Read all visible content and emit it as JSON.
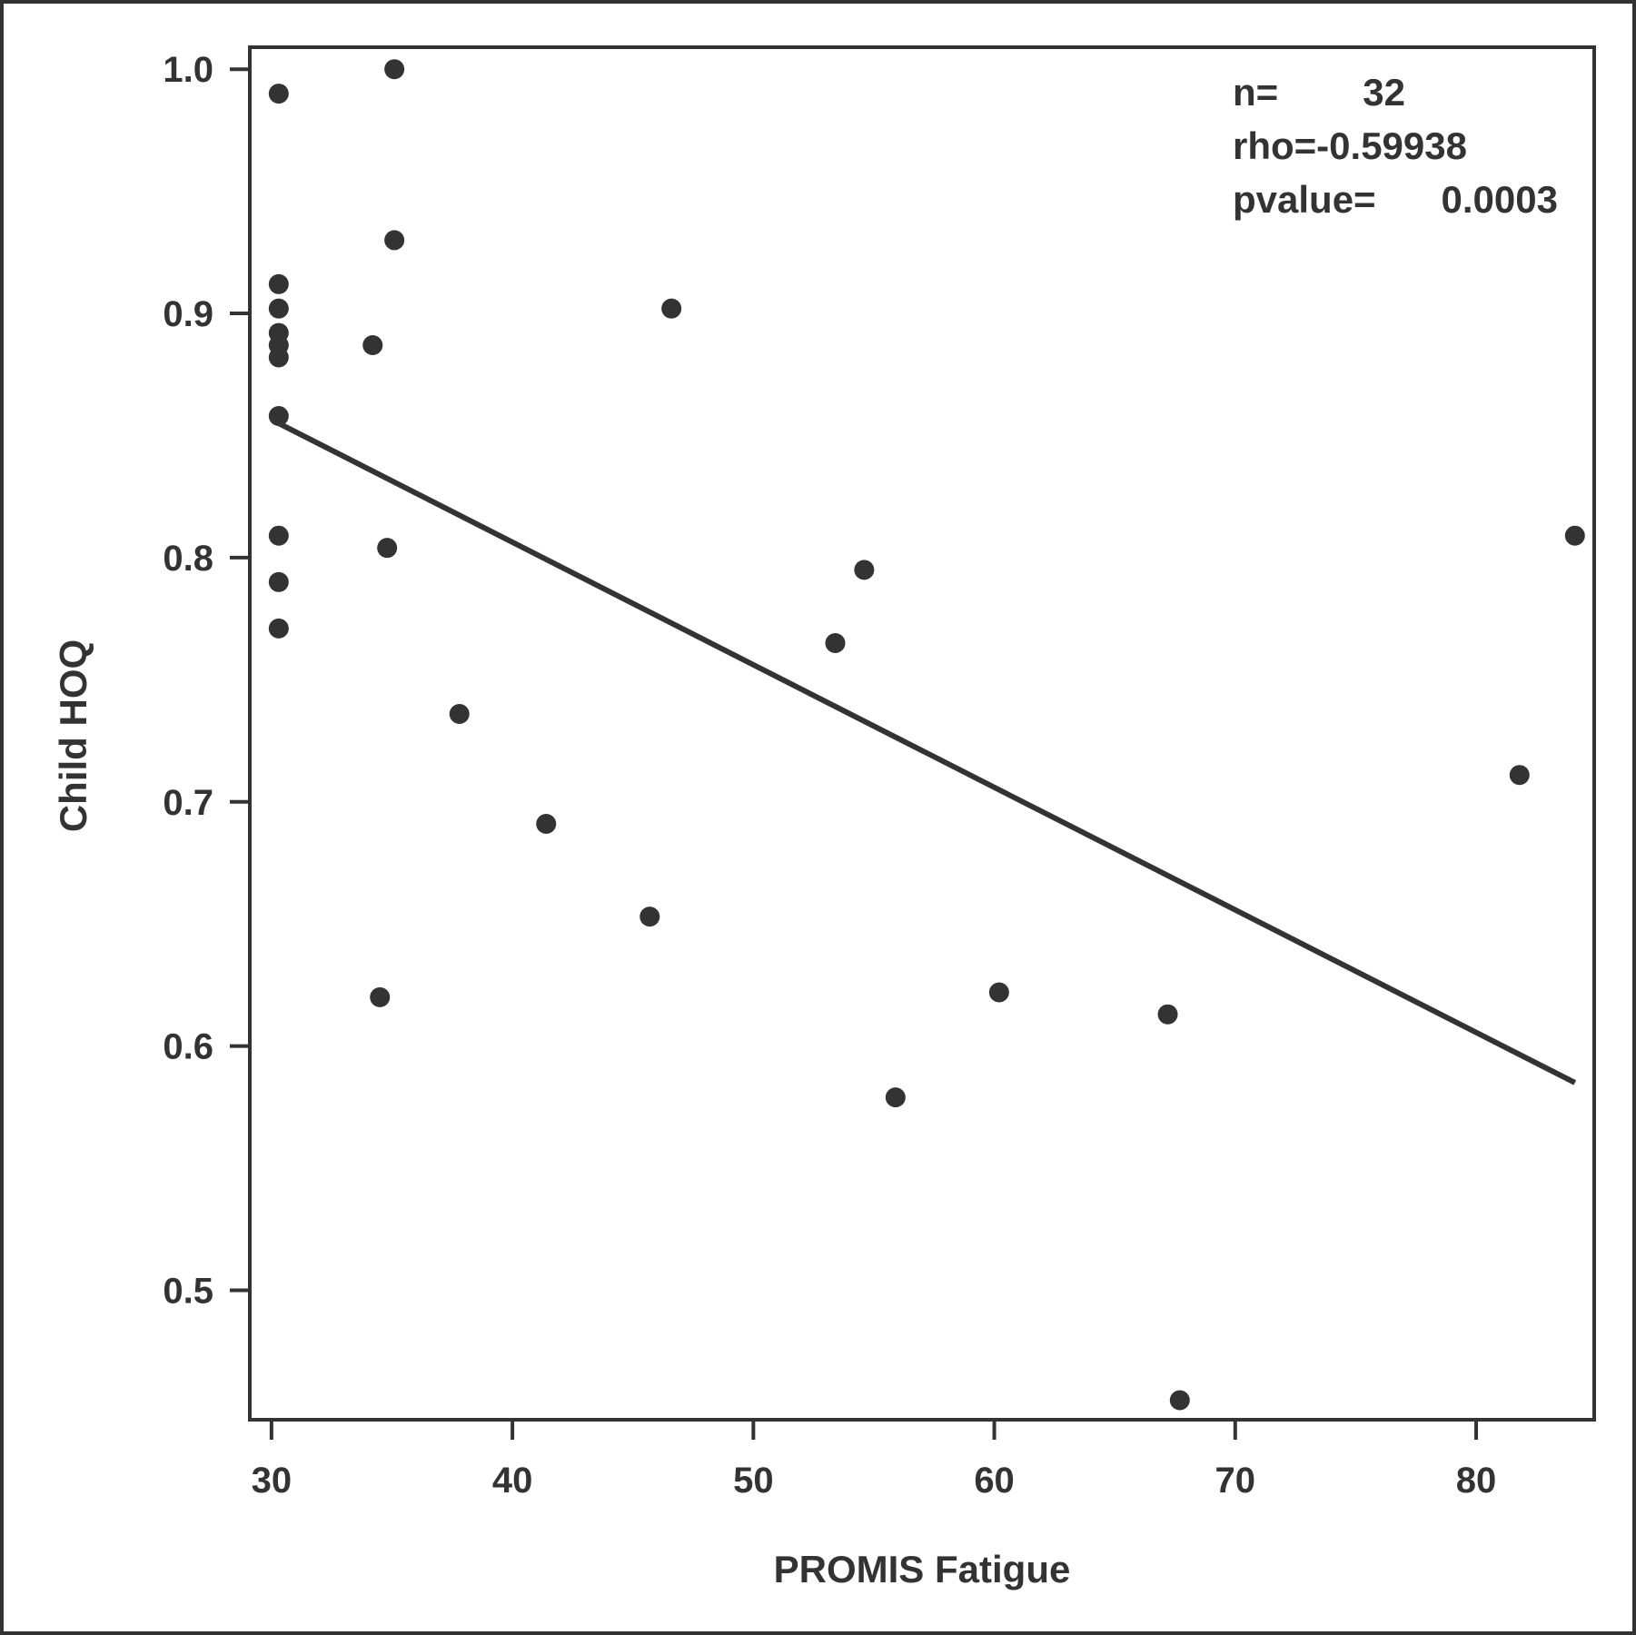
{
  "chart_data": {
    "type": "scatter",
    "xlabel": "PROMIS Fatigue",
    "ylabel": "Child HOQ",
    "xlim": [
      29.1,
      84.9
    ],
    "ylim": [
      0.447,
      1.009
    ],
    "x_ticks": [
      30,
      40,
      50,
      60,
      70,
      80
    ],
    "x_tick_labels": [
      "30",
      "40",
      "50",
      "60",
      "70",
      "80"
    ],
    "y_ticks": [
      0.5,
      0.6,
      0.7,
      0.8,
      0.9,
      1.0
    ],
    "y_tick_labels": [
      "0.5",
      "0.6",
      "0.7",
      "0.8",
      "0.9",
      "1.0"
    ],
    "grid": false,
    "points": [
      {
        "x": 30.3,
        "y": 0.99
      },
      {
        "x": 30.3,
        "y": 0.912
      },
      {
        "x": 30.3,
        "y": 0.902
      },
      {
        "x": 30.3,
        "y": 0.892
      },
      {
        "x": 30.3,
        "y": 0.887
      },
      {
        "x": 30.3,
        "y": 0.882
      },
      {
        "x": 30.3,
        "y": 0.858
      },
      {
        "x": 30.3,
        "y": 0.809
      },
      {
        "x": 30.3,
        "y": 0.79
      },
      {
        "x": 30.3,
        "y": 0.771
      },
      {
        "x": 34.2,
        "y": 0.887
      },
      {
        "x": 34.5,
        "y": 0.62
      },
      {
        "x": 34.8,
        "y": 0.804
      },
      {
        "x": 35.1,
        "y": 1.0
      },
      {
        "x": 35.1,
        "y": 0.93
      },
      {
        "x": 37.8,
        "y": 0.736
      },
      {
        "x": 41.4,
        "y": 0.691
      },
      {
        "x": 45.7,
        "y": 0.653
      },
      {
        "x": 46.6,
        "y": 0.902
      },
      {
        "x": 53.4,
        "y": 0.765
      },
      {
        "x": 54.6,
        "y": 0.795
      },
      {
        "x": 55.9,
        "y": 0.579
      },
      {
        "x": 60.2,
        "y": 0.622
      },
      {
        "x": 67.2,
        "y": 0.613
      },
      {
        "x": 67.7,
        "y": 0.455
      },
      {
        "x": 81.8,
        "y": 0.711
      },
      {
        "x": 84.1,
        "y": 0.809
      }
    ],
    "fit_line": {
      "x": [
        30.3,
        84.1
      ],
      "y": [
        0.855,
        0.585
      ]
    },
    "annotations": {
      "n_label": "n=",
      "n_value": "32",
      "rho": "rho=-0.59938",
      "pvalue_label": "pvalue=",
      "pvalue_value": "0.0003"
    }
  }
}
